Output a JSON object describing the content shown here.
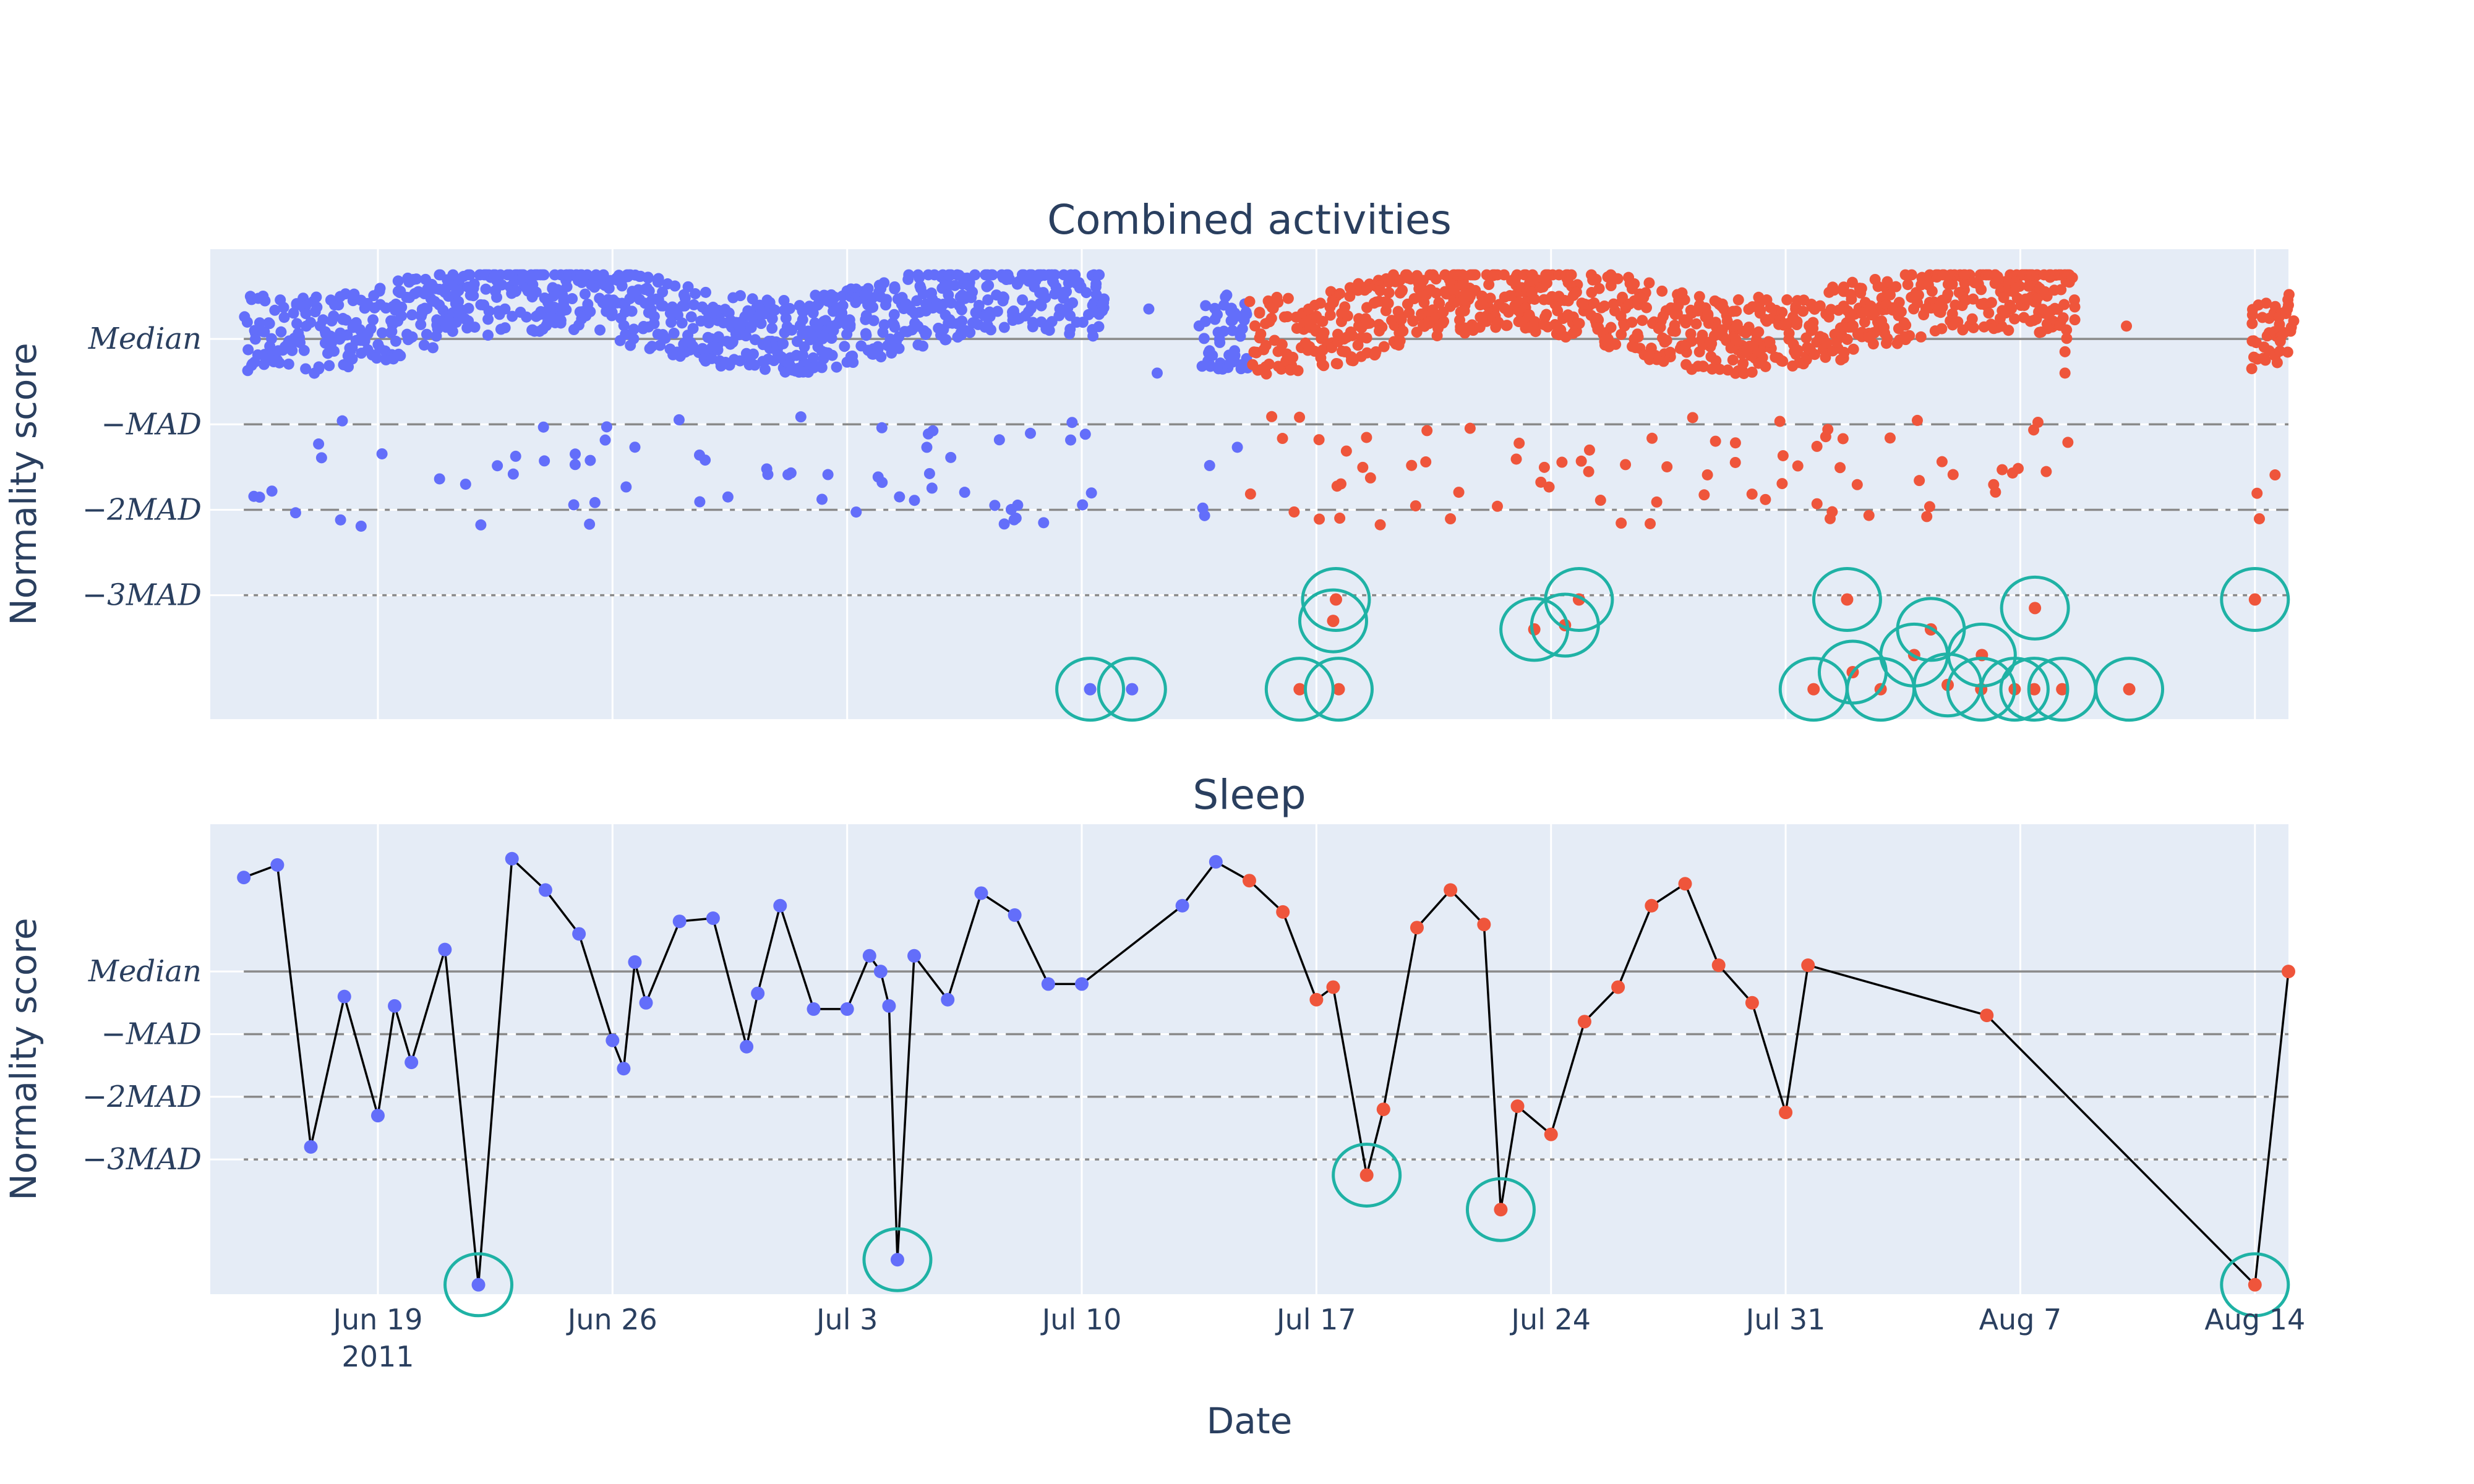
{
  "chart_data": {
    "type": "scatter",
    "xlabel": "Date",
    "x_ticks": [
      {
        "date": "2011-06-19",
        "label": "Jun 19",
        "sublabel": "2011"
      },
      {
        "date": "2011-06-26",
        "label": "Jun 26"
      },
      {
        "date": "2011-07-03",
        "label": "Jul 3"
      },
      {
        "date": "2011-07-10",
        "label": "Jul 10"
      },
      {
        "date": "2011-07-17",
        "label": "Jul 17"
      },
      {
        "date": "2011-07-24",
        "label": "Jul 24"
      },
      {
        "date": "2011-07-31",
        "label": "Jul 31"
      },
      {
        "date": "2011-08-07",
        "label": "Aug 7"
      },
      {
        "date": "2011-08-14",
        "label": "Aug 14"
      }
    ],
    "xlim": [
      "2011-06-14",
      "2011-08-15"
    ],
    "colors": {
      "before": "#636efa",
      "after": "#ef553b",
      "anomaly": "#1fb2a5",
      "line": "#000000",
      "reference": "#8a8a8a",
      "plot_bg": "#e5ecf6"
    },
    "subplots": [
      {
        "id": "combined",
        "title": "Combined activities",
        "ylabel": "Normality score",
        "yticks": [
          {
            "value": 0,
            "label": "Median"
          },
          {
            "value": -1,
            "label": "−MAD"
          },
          {
            "value": -2,
            "label": "−2MAD"
          },
          {
            "value": -3,
            "label": "−3MAD"
          }
        ],
        "ylim": [
          -4.45,
          1.05
        ],
        "reference_lines": [
          {
            "value": 0,
            "style": "solid"
          },
          {
            "value": -1,
            "style": "dash"
          },
          {
            "value": -2,
            "style": "dashdot"
          },
          {
            "value": -3,
            "style": "dot"
          }
        ],
        "split_date": "2011-07-15",
        "anomalies": [
          [
            "2011-07-10T06:00",
            -4.1
          ],
          [
            "2011-07-11T12:00",
            -4.1
          ],
          [
            "2011-07-16T12:00",
            -4.1
          ],
          [
            "2011-07-17T16:00",
            -4.1
          ],
          [
            "2011-07-17T12:00",
            -3.3
          ],
          [
            "2011-07-17T14:00",
            -3.05
          ],
          [
            "2011-07-23T12:00",
            -3.4
          ],
          [
            "2011-07-24T10:00",
            -3.35
          ],
          [
            "2011-07-24T20:00",
            -3.05
          ],
          [
            "2011-07-31T20:00",
            -4.1
          ],
          [
            "2011-08-01T20:00",
            -3.05
          ],
          [
            "2011-08-02T00:00",
            -3.9
          ],
          [
            "2011-08-02T20:00",
            -4.1
          ],
          [
            "2011-08-03T20:00",
            -3.7
          ],
          [
            "2011-08-04T08:00",
            -3.4
          ],
          [
            "2011-08-04T20:00",
            -4.05
          ],
          [
            "2011-08-05T20:00",
            -4.1
          ],
          [
            "2011-08-05T20:30",
            -3.7
          ],
          [
            "2011-08-06T20:00",
            -4.1
          ],
          [
            "2011-08-07T10:00",
            -4.1
          ],
          [
            "2011-08-07T10:30",
            -3.15
          ],
          [
            "2011-08-08T06:00",
            -4.1
          ],
          [
            "2011-08-10T06:00",
            -4.1
          ],
          [
            "2011-08-14T00:00",
            -3.05
          ]
        ]
      },
      {
        "id": "sleep",
        "title": "Sleep",
        "ylabel": "Normality score",
        "yticks": [
          {
            "value": 0,
            "label": "Median"
          },
          {
            "value": -1,
            "label": "−MAD"
          },
          {
            "value": -2,
            "label": "−2MAD"
          },
          {
            "value": -3,
            "label": "−3MAD"
          }
        ],
        "ylim": [
          -5.15,
          2.35
        ],
        "reference_lines": [
          {
            "value": 0,
            "style": "solid"
          },
          {
            "value": -1,
            "style": "dash"
          },
          {
            "value": -2,
            "style": "dashdot"
          },
          {
            "value": -3,
            "style": "dot"
          }
        ],
        "split_date": "2011-07-15",
        "points": [
          [
            "2011-06-15T00:00",
            1.5
          ],
          [
            "2011-06-16T00:00",
            1.7
          ],
          [
            "2011-06-17T00:00",
            -2.8
          ],
          [
            "2011-06-18T00:00",
            -0.4
          ],
          [
            "2011-06-19T00:00",
            -2.3
          ],
          [
            "2011-06-19T12:00",
            -0.55
          ],
          [
            "2011-06-20T00:00",
            -1.45
          ],
          [
            "2011-06-21T00:00",
            0.35
          ],
          [
            "2011-06-22T00:00",
            -5.0
          ],
          [
            "2011-06-23T00:00",
            1.8
          ],
          [
            "2011-06-24T00:00",
            1.3
          ],
          [
            "2011-06-25T00:00",
            0.6
          ],
          [
            "2011-06-26T00:00",
            -1.1
          ],
          [
            "2011-06-26T08:00",
            -1.55
          ],
          [
            "2011-06-26T16:00",
            0.15
          ],
          [
            "2011-06-27T00:00",
            -0.5
          ],
          [
            "2011-06-28T00:00",
            0.8
          ],
          [
            "2011-06-29T00:00",
            0.85
          ],
          [
            "2011-06-30T00:00",
            -1.2
          ],
          [
            "2011-06-30T08:00",
            -0.35
          ],
          [
            "2011-07-01T00:00",
            1.05
          ],
          [
            "2011-07-02T00:00",
            -0.6
          ],
          [
            "2011-07-03T00:00",
            -0.6
          ],
          [
            "2011-07-03T16:00",
            0.25
          ],
          [
            "2011-07-04T00:00",
            0.0
          ],
          [
            "2011-07-04T06:00",
            -0.55
          ],
          [
            "2011-07-04T12:00",
            -4.6
          ],
          [
            "2011-07-05T00:00",
            0.25
          ],
          [
            "2011-07-06T00:00",
            -0.45
          ],
          [
            "2011-07-07T00:00",
            1.25
          ],
          [
            "2011-07-08T00:00",
            0.9
          ],
          [
            "2011-07-09T00:00",
            -0.2
          ],
          [
            "2011-07-10T00:00",
            -0.2
          ],
          [
            "2011-07-13T00:00",
            1.05
          ],
          [
            "2011-07-14T00:00",
            1.75
          ],
          [
            "2011-07-15T00:00",
            1.45
          ],
          [
            "2011-07-16T00:00",
            0.95
          ],
          [
            "2011-07-17T00:00",
            -0.45
          ],
          [
            "2011-07-17T12:00",
            -0.25
          ],
          [
            "2011-07-18T12:00",
            -3.25
          ],
          [
            "2011-07-19T00:00",
            -2.2
          ],
          [
            "2011-07-20T00:00",
            0.7
          ],
          [
            "2011-07-21T00:00",
            1.3
          ],
          [
            "2011-07-22T00:00",
            0.75
          ],
          [
            "2011-07-22T12:00",
            -3.8
          ],
          [
            "2011-07-23T00:00",
            -2.15
          ],
          [
            "2011-07-24T00:00",
            -2.6
          ],
          [
            "2011-07-25T00:00",
            -0.8
          ],
          [
            "2011-07-26T00:00",
            -0.25
          ],
          [
            "2011-07-27T00:00",
            1.05
          ],
          [
            "2011-07-28T00:00",
            1.4
          ],
          [
            "2011-07-29T00:00",
            0.1
          ],
          [
            "2011-07-30T00:00",
            -0.5
          ],
          [
            "2011-07-31T00:00",
            -2.25
          ],
          [
            "2011-07-31T16:00",
            0.1
          ],
          [
            "2011-08-06T00:00",
            -0.7
          ],
          [
            "2011-08-14T00:00",
            -5.0
          ],
          [
            "2011-08-15T00:00",
            0.0
          ]
        ],
        "anomalies": [
          [
            "2011-06-22T00:00",
            -5.0
          ],
          [
            "2011-07-04T12:00",
            -4.6
          ],
          [
            "2011-07-18T12:00",
            -3.25
          ],
          [
            "2011-07-22T12:00",
            -3.8
          ],
          [
            "2011-08-14T00:00",
            -5.0
          ]
        ]
      }
    ]
  }
}
